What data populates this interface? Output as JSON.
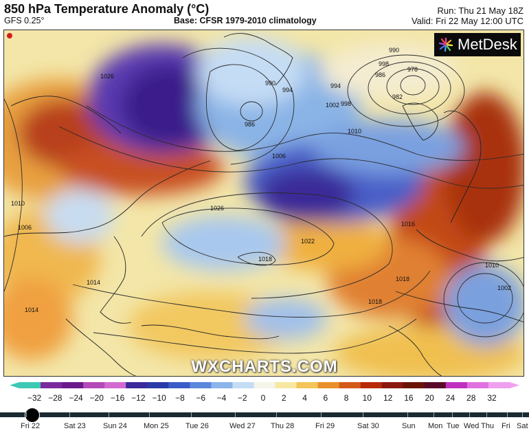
{
  "header": {
    "title": "850 hPa Temperature Anomaly (°C)",
    "model": "GFS 0.25°",
    "base": "Base: CFSR 1979-2010 climatology",
    "run": "Run: Thu 21 May 18Z",
    "valid": "Valid: Fri 22 May 12:00 UTC"
  },
  "brand": {
    "logo_text": "MetDesk",
    "watermark": "WXCHARTS.COM"
  },
  "map": {
    "isobar_labels": [
      "990",
      "994",
      "998",
      "978",
      "986",
      "982",
      "990",
      "994",
      "998",
      "1002",
      "986",
      "1006",
      "1010",
      "1026",
      "1026",
      "1022",
      "1018",
      "1018",
      "1010",
      "1016",
      "1002",
      "1018",
      "1014",
      "1014",
      "1010",
      "1006"
    ]
  },
  "colorbar": {
    "labels": [
      "−32",
      "−28",
      "−24",
      "−20",
      "−16",
      "−12",
      "−10",
      "−8",
      "−6",
      "−4",
      "−2",
      "0",
      "2",
      "4",
      "6",
      "8",
      "10",
      "12",
      "16",
      "20",
      "24",
      "28",
      "32"
    ],
    "colors": [
      "#3dc9b4",
      "#7a2a9e",
      "#6a1a8a",
      "#b44ab8",
      "#d46ad0",
      "#3a2a9a",
      "#2a3aa8",
      "#3a5cc8",
      "#5a86dc",
      "#8ab4ea",
      "#c4dcf4",
      "#f4f4e8",
      "#f6e8a0",
      "#f2c45a",
      "#e8902a",
      "#d45a1a",
      "#b82a0a",
      "#8a180e",
      "#6a1408",
      "#5a0a28",
      "#c030c0",
      "#e070e0",
      "#f0a0f0"
    ]
  },
  "timeline": {
    "days": [
      "Fri 22",
      "Sat 23",
      "Sun 24",
      "Mon 25",
      "Tue 26",
      "Wed 27",
      "Thu 28",
      "Fri 29",
      "Sat 30",
      "Sun",
      "Mon",
      "Tue",
      "Wed",
      "Thu",
      "Fri",
      "Sat"
    ],
    "current": "Fri 22"
  }
}
